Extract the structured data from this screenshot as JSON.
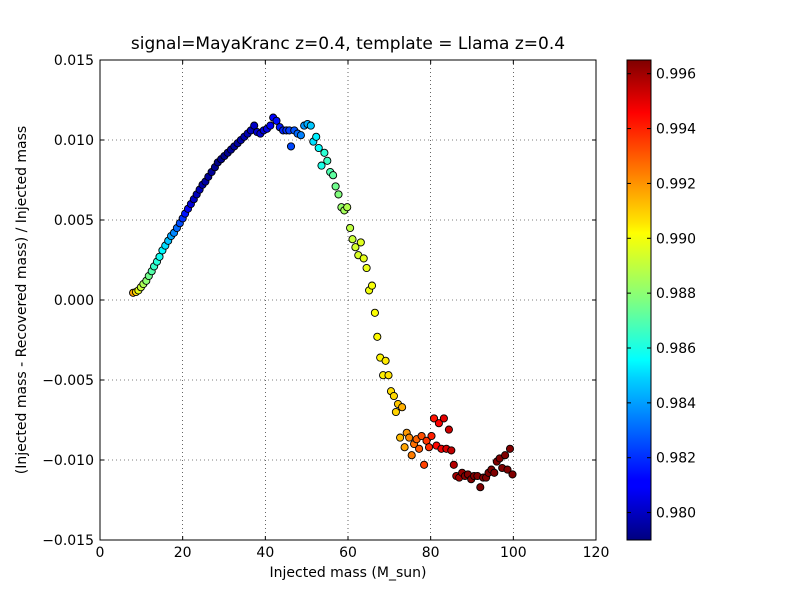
{
  "chart_data": {
    "type": "scatter",
    "title": "signal=MayaKranc z=0.4, template = Llama z=0.4",
    "xlabel": "Injected mass (M_sun)",
    "ylabel": "(Injected mass - Recovered mass) / Injected mass",
    "xlim": [
      0,
      120
    ],
    "ylim": [
      -0.015,
      0.015
    ],
    "xticks": [
      0,
      20,
      40,
      60,
      80,
      100,
      120
    ],
    "xtick_labels": [
      "0",
      "20",
      "40",
      "60",
      "80",
      "100",
      "120"
    ],
    "yticks": [
      -0.015,
      -0.01,
      -0.005,
      0.0,
      0.005,
      0.01,
      0.015
    ],
    "ytick_labels": [
      "−0.015",
      "−0.010",
      "−0.005",
      "0.000",
      "0.005",
      "0.010",
      "0.015"
    ],
    "grid": true,
    "colormap": "jet",
    "colorbar": {
      "range": [
        0.979,
        0.9965
      ],
      "ticks": [
        0.98,
        0.982,
        0.984,
        0.986,
        0.988,
        0.99,
        0.992,
        0.994,
        0.996
      ],
      "tick_labels": [
        "0.980",
        "0.982",
        "0.984",
        "0.986",
        "0.988",
        "0.990",
        "0.992",
        "0.994",
        "0.996"
      ]
    },
    "points": [
      [
        8.0,
        0.00045,
        0.9915
      ],
      [
        8.7,
        0.0005,
        0.9905
      ],
      [
        9.3,
        0.0006,
        0.9895
      ],
      [
        9.9,
        0.0008,
        0.989
      ],
      [
        10.5,
        0.001,
        0.9885
      ],
      [
        11.2,
        0.0012,
        0.988
      ],
      [
        11.8,
        0.0015,
        0.9875
      ],
      [
        12.5,
        0.0018,
        0.987
      ],
      [
        13.1,
        0.0021,
        0.9865
      ],
      [
        13.8,
        0.0024,
        0.9862
      ],
      [
        14.4,
        0.0027,
        0.9858
      ],
      [
        15.1,
        0.0031,
        0.9855
      ],
      [
        15.8,
        0.0034,
        0.985
      ],
      [
        16.5,
        0.0037,
        0.9845
      ],
      [
        17.2,
        0.004,
        0.984
      ],
      [
        17.9,
        0.0042,
        0.9835
      ],
      [
        18.6,
        0.0045,
        0.983
      ],
      [
        19.3,
        0.0048,
        0.9825
      ],
      [
        20.0,
        0.0051,
        0.982
      ],
      [
        20.6,
        0.0054,
        0.9815
      ],
      [
        21.3,
        0.0057,
        0.981
      ],
      [
        22.0,
        0.006,
        0.9805
      ],
      [
        22.7,
        0.0063,
        0.9802
      ],
      [
        23.4,
        0.0066,
        0.98
      ],
      [
        24.1,
        0.0069,
        0.98
      ],
      [
        24.8,
        0.0072,
        0.9798
      ],
      [
        25.5,
        0.0074,
        0.9796
      ],
      [
        26.2,
        0.0077,
        0.9795
      ],
      [
        27.0,
        0.008,
        0.9794
      ],
      [
        27.8,
        0.0083,
        0.9793
      ],
      [
        28.5,
        0.0086,
        0.9792
      ],
      [
        29.3,
        0.0088,
        0.9792
      ],
      [
        30.1,
        0.009,
        0.9792
      ],
      [
        30.9,
        0.0092,
        0.9793
      ],
      [
        31.7,
        0.0094,
        0.9794
      ],
      [
        32.5,
        0.0096,
        0.9795
      ],
      [
        33.3,
        0.0098,
        0.9796
      ],
      [
        34.1,
        0.01,
        0.9797
      ],
      [
        34.9,
        0.0102,
        0.9798
      ],
      [
        35.7,
        0.0104,
        0.9799
      ],
      [
        36.5,
        0.0106,
        0.98
      ],
      [
        37.3,
        0.0109,
        0.9802
      ],
      [
        38.0,
        0.0105,
        0.9803
      ],
      [
        38.8,
        0.0104,
        0.9804
      ],
      [
        39.6,
        0.0106,
        0.9806
      ],
      [
        40.4,
        0.0107,
        0.9808
      ],
      [
        41.2,
        0.0109,
        0.981
      ],
      [
        41.9,
        0.0114,
        0.9812
      ],
      [
        42.7,
        0.0112,
        0.9814
      ],
      [
        43.5,
        0.0108,
        0.9816
      ],
      [
        44.3,
        0.0106,
        0.9818
      ],
      [
        45.1,
        0.0106,
        0.982
      ],
      [
        45.8,
        0.0106,
        0.9822
      ],
      [
        46.2,
        0.0096,
        0.9824
      ],
      [
        47.0,
        0.0106,
        0.9826
      ],
      [
        47.8,
        0.0104,
        0.983
      ],
      [
        48.6,
        0.0103,
        0.9834
      ],
      [
        49.4,
        0.0109,
        0.9838
      ],
      [
        50.2,
        0.011,
        0.9842
      ],
      [
        51.0,
        0.0109,
        0.9846
      ],
      [
        51.6,
        0.0099,
        0.985
      ],
      [
        52.3,
        0.0102,
        0.9853
      ],
      [
        52.9,
        0.0095,
        0.9856
      ],
      [
        53.6,
        0.0084,
        0.986
      ],
      [
        54.3,
        0.0092,
        0.9863
      ],
      [
        55.0,
        0.0087,
        0.9866
      ],
      [
        55.7,
        0.008,
        0.9869
      ],
      [
        56.4,
        0.0078,
        0.9872
      ],
      [
        57.0,
        0.0071,
        0.9875
      ],
      [
        57.7,
        0.0066,
        0.9878
      ],
      [
        58.4,
        0.0058,
        0.9881
      ],
      [
        59.1,
        0.0056,
        0.9884
      ],
      [
        59.8,
        0.0058,
        0.9886
      ],
      [
        60.5,
        0.0045,
        0.9888
      ],
      [
        61.1,
        0.0038,
        0.989
      ],
      [
        61.8,
        0.0033,
        0.9892
      ],
      [
        62.5,
        0.0028,
        0.9893
      ],
      [
        63.1,
        0.0036,
        0.9894
      ],
      [
        63.8,
        0.0026,
        0.9895
      ],
      [
        64.5,
        0.002,
        0.9896
      ],
      [
        65.1,
        0.0006,
        0.9897
      ],
      [
        65.8,
        0.0009,
        0.9898
      ],
      [
        66.5,
        -0.0008,
        0.9899
      ],
      [
        67.1,
        -0.0023,
        0.99
      ],
      [
        67.8,
        -0.0036,
        0.9901
      ],
      [
        68.5,
        -0.0047,
        0.9902
      ],
      [
        69.1,
        -0.0038,
        0.9903
      ],
      [
        69.8,
        -0.0047,
        0.9904
      ],
      [
        70.4,
        -0.0057,
        0.9905
      ],
      [
        71.1,
        -0.006,
        0.9906
      ],
      [
        71.6,
        -0.007,
        0.9907
      ],
      [
        72.1,
        -0.0065,
        0.9909
      ],
      [
        72.6,
        -0.0086,
        0.9911
      ],
      [
        73.1,
        -0.0067,
        0.9913
      ],
      [
        73.7,
        -0.0092,
        0.9915
      ],
      [
        74.2,
        -0.0083,
        0.9917
      ],
      [
        74.8,
        -0.0086,
        0.992
      ],
      [
        75.4,
        -0.0097,
        0.9922
      ],
      [
        76.0,
        -0.009,
        0.9924
      ],
      [
        76.6,
        -0.0087,
        0.9926
      ],
      [
        77.2,
        -0.0093,
        0.9928
      ],
      [
        77.8,
        -0.0085,
        0.993
      ],
      [
        78.4,
        -0.0103,
        0.9932
      ],
      [
        79.0,
        -0.0088,
        0.9934
      ],
      [
        79.6,
        -0.0092,
        0.9936
      ],
      [
        80.2,
        -0.0085,
        0.9938
      ],
      [
        80.8,
        -0.0074,
        0.994
      ],
      [
        81.4,
        -0.0091,
        0.9942
      ],
      [
        82.0,
        -0.0077,
        0.9944
      ],
      [
        82.6,
        -0.0093,
        0.9946
      ],
      [
        83.2,
        -0.0074,
        0.9948
      ],
      [
        83.8,
        -0.0093,
        0.995
      ],
      [
        84.4,
        -0.0081,
        0.9952
      ],
      [
        85.0,
        -0.0094,
        0.9954
      ],
      [
        85.6,
        -0.0103,
        0.9956
      ],
      [
        86.2,
        -0.011,
        0.9958
      ],
      [
        86.9,
        -0.0111,
        0.996
      ],
      [
        87.6,
        -0.0108,
        0.9962
      ],
      [
        88.3,
        -0.011,
        0.9964
      ],
      [
        89.0,
        -0.0109,
        0.9965
      ],
      [
        89.8,
        -0.0112,
        0.9965
      ],
      [
        90.5,
        -0.011,
        0.9965
      ],
      [
        91.3,
        -0.011,
        0.9965
      ],
      [
        92.0,
        -0.0117,
        0.9965
      ],
      [
        92.7,
        -0.0111,
        0.9965
      ],
      [
        93.4,
        -0.0111,
        0.9965
      ],
      [
        94.0,
        -0.0108,
        0.9965
      ],
      [
        94.7,
        -0.0106,
        0.9965
      ],
      [
        95.4,
        -0.0108,
        0.9965
      ],
      [
        96.0,
        -0.0101,
        0.9965
      ],
      [
        96.7,
        -0.0099,
        0.9965
      ],
      [
        97.3,
        -0.0105,
        0.9965
      ],
      [
        98.0,
        -0.0097,
        0.9965
      ],
      [
        98.6,
        -0.0106,
        0.9965
      ],
      [
        99.2,
        -0.0093,
        0.9965
      ],
      [
        99.8,
        -0.0109,
        0.9965
      ]
    ]
  }
}
